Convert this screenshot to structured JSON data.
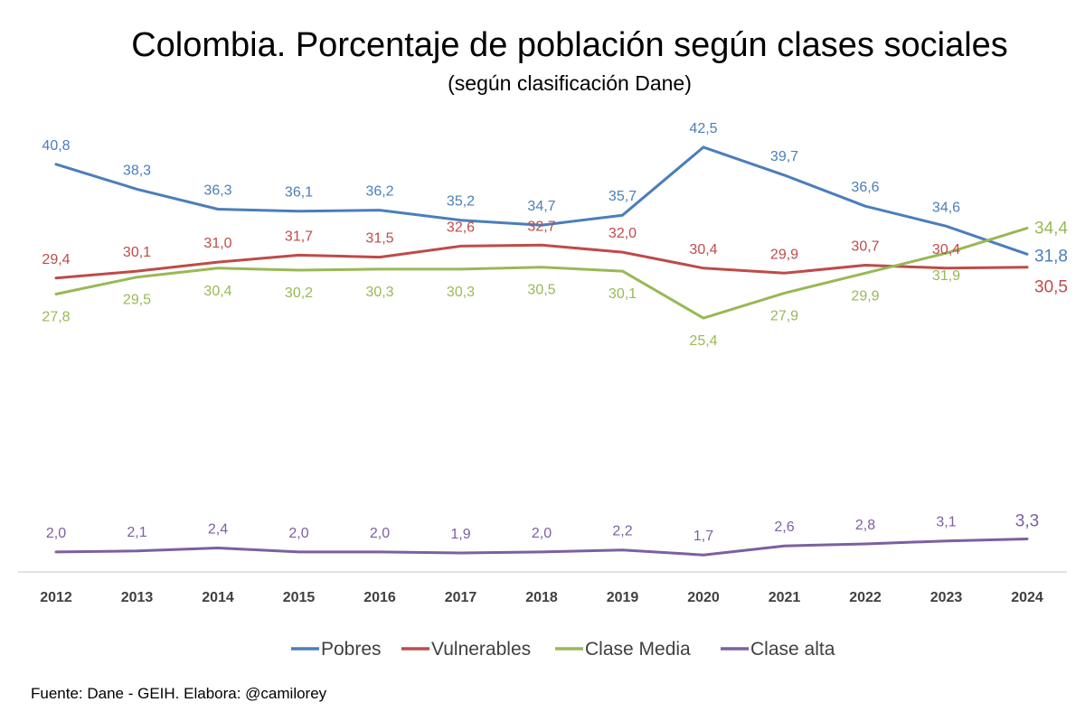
{
  "chart_data": {
    "type": "line",
    "title": "Colombia. Porcentaje de población según clases sociales",
    "subtitle": "(según clasificación Dane)",
    "x": [
      "2012",
      "2013",
      "2014",
      "2015",
      "2016",
      "2017",
      "2018",
      "2019",
      "2020",
      "2021",
      "2022",
      "2023",
      "2024"
    ],
    "ylim": [
      0,
      50
    ],
    "grid": false,
    "legend": "bottom",
    "series": [
      {
        "name": "Pobres",
        "color": "#4A7EBB",
        "values": [
          40.8,
          38.3,
          36.3,
          36.1,
          36.2,
          35.2,
          34.7,
          35.7,
          42.5,
          39.7,
          36.6,
          34.6,
          31.8
        ],
        "labels": [
          "40,8",
          "38,3",
          "36,3",
          "36,1",
          "36,2",
          "35,2",
          "34,7",
          "35,7",
          "42,5",
          "39,7",
          "36,6",
          "34,6",
          "31,8"
        ]
      },
      {
        "name": "Vulnerables",
        "color": "#BE4B48",
        "values": [
          29.4,
          30.1,
          31.0,
          31.7,
          31.5,
          32.6,
          32.7,
          32.0,
          30.4,
          29.9,
          30.7,
          30.4,
          30.5
        ],
        "labels": [
          "29,4",
          "30,1",
          "31,0",
          "31,7",
          "31,5",
          "32,6",
          "32,7",
          "32,0",
          "30,4",
          "29,9",
          "30,7",
          "30,4",
          "30,5"
        ]
      },
      {
        "name": "Clase Media",
        "color": "#98B954",
        "values": [
          27.8,
          29.5,
          30.4,
          30.2,
          30.3,
          30.3,
          30.5,
          30.1,
          25.4,
          27.9,
          29.9,
          31.9,
          34.4
        ],
        "labels": [
          "27,8",
          "29,5",
          "30,4",
          "30,2",
          "30,3",
          "30,3",
          "30,5",
          "30,1",
          "25,4",
          "27,9",
          "29,9",
          "31,9",
          "34,4"
        ]
      },
      {
        "name": "Clase alta",
        "color": "#7D5FA0",
        "values": [
          2.0,
          2.1,
          2.4,
          2.0,
          2.0,
          1.9,
          2.0,
          2.2,
          1.7,
          2.6,
          2.8,
          3.1,
          3.3
        ],
        "labels": [
          "2,0",
          "2,1",
          "2,4",
          "2,0",
          "2,0",
          "1,9",
          "2,0",
          "2,2",
          "1,7",
          "2,6",
          "2,8",
          "3,1",
          "3,3"
        ]
      }
    ],
    "source": "Fuente: Dane - GEIH. Elabora: @camilorey"
  }
}
